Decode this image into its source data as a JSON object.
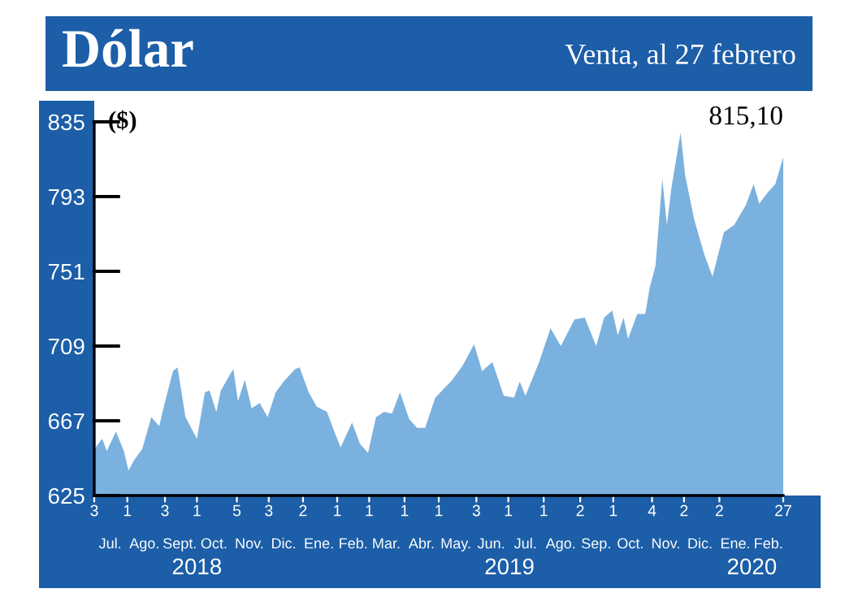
{
  "chart_data": {
    "type": "area",
    "title": "Dólar",
    "subtitle": "Venta, al 27 febrero",
    "ylabel": "($)",
    "x": [
      "2018-07-03",
      "2018-07-10",
      "2018-07-14",
      "2018-07-22",
      "2018-07-29",
      "2018-08-02",
      "2018-08-07",
      "2018-08-14",
      "2018-08-22",
      "2018-08-29",
      "2018-09-02",
      "2018-09-10",
      "2018-09-14",
      "2018-09-21",
      "2018-10-01",
      "2018-10-08",
      "2018-10-12",
      "2018-10-18",
      "2018-10-22",
      "2018-10-30",
      "2018-11-02",
      "2018-11-06",
      "2018-11-12",
      "2018-11-18",
      "2018-11-25",
      "2018-12-02",
      "2018-12-09",
      "2018-12-16",
      "2018-12-26",
      "2018-12-30",
      "2019-01-07",
      "2019-01-14",
      "2019-01-23",
      "2019-01-30",
      "2019-02-04",
      "2019-02-14",
      "2019-02-21",
      "2019-02-28",
      "2019-03-07",
      "2019-03-14",
      "2019-03-21",
      "2019-03-28",
      "2019-04-05",
      "2019-04-12",
      "2019-04-19",
      "2019-04-28",
      "2019-05-13",
      "2019-05-22",
      "2019-06-01",
      "2019-06-08",
      "2019-06-17",
      "2019-06-27",
      "2019-07-06",
      "2019-07-11",
      "2019-07-16",
      "2019-07-28",
      "2019-08-07",
      "2019-08-16",
      "2019-08-28",
      "2019-09-06",
      "2019-09-16",
      "2019-09-23",
      "2019-09-30",
      "2019-10-05",
      "2019-10-10",
      "2019-10-14",
      "2019-10-22",
      "2019-10-29",
      "2019-11-02",
      "2019-11-07",
      "2019-11-13",
      "2019-11-17",
      "2019-11-21",
      "2019-11-29",
      "2019-12-03",
      "2019-12-11",
      "2019-12-20",
      "2019-12-27",
      "2020-01-06",
      "2020-01-15",
      "2020-01-25",
      "2020-02-01",
      "2020-02-06",
      "2020-02-13",
      "2020-02-20",
      "2020-02-27"
    ],
    "series": [
      {
        "color": "#7bb1de",
        "values": [
          651,
          657,
          650,
          661,
          650,
          639,
          645,
          651,
          669,
          664,
          675,
          695,
          697,
          669,
          657,
          683,
          684,
          672,
          684,
          693,
          696,
          678,
          690,
          674,
          677,
          669,
          683,
          689,
          696,
          697,
          683,
          675,
          672,
          660,
          652,
          666,
          654,
          649,
          669,
          672,
          671,
          683,
          668,
          663,
          663,
          680,
          690,
          698,
          710,
          695,
          700,
          681,
          680,
          689,
          681,
          700,
          719,
          709,
          724,
          725,
          709,
          725,
          729,
          715,
          725,
          713,
          727,
          727,
          742,
          754,
          803,
          777,
          798,
          829,
          805,
          780,
          760,
          748,
          773,
          777,
          788,
          800,
          789,
          795,
          800,
          815.1
        ]
      }
    ],
    "annotations": [
      {
        "text": "815,10",
        "x": "2020-02-27",
        "y": 815.1
      },
      "2018",
      "2019",
      "2020"
    ],
    "ylim": [
      625,
      835
    ],
    "yticks": [
      625,
      667,
      709,
      751,
      793,
      835
    ],
    "xlim": [
      "2018-07-03",
      "2020-02-27"
    ],
    "xticks": [
      {
        "value": "2018-07-03",
        "label": "3"
      },
      {
        "value": "2018-08-01",
        "label": "1"
      },
      {
        "value": "2018-09-03",
        "label": "3"
      },
      {
        "value": "2018-10-01",
        "label": "1"
      },
      {
        "value": "2018-11-05",
        "label": "5"
      },
      {
        "value": "2018-12-03",
        "label": "3"
      },
      {
        "value": "2019-01-02",
        "label": "2"
      },
      {
        "value": "2019-02-01",
        "label": "1"
      },
      {
        "value": "2019-03-01",
        "label": "1"
      },
      {
        "value": "2019-04-01",
        "label": "1"
      },
      {
        "value": "2019-05-01",
        "label": "1"
      },
      {
        "value": "2019-06-03",
        "label": "3"
      },
      {
        "value": "2019-07-01",
        "label": "1"
      },
      {
        "value": "2019-08-01",
        "label": "1"
      },
      {
        "value": "2019-09-02",
        "label": "2"
      },
      {
        "value": "2019-10-01",
        "label": "1"
      },
      {
        "value": "2019-11-04",
        "label": "4"
      },
      {
        "value": "2019-12-02",
        "label": "2"
      },
      {
        "value": "2020-01-02",
        "label": "2"
      },
      {
        "value": "2020-02-27",
        "label": "27"
      }
    ],
    "x2lim": [
      "2018-07-03",
      "2020-02-27"
    ],
    "x2ticks": [
      {
        "value": "2018-07-17",
        "label": "Jul."
      },
      {
        "value": "2018-08-16",
        "label": "Ago."
      },
      {
        "value": "2018-09-16",
        "label": "Sept."
      },
      {
        "value": "2018-10-16",
        "label": "Oct."
      },
      {
        "value": "2018-11-16",
        "label": "Nov."
      },
      {
        "value": "2018-12-16",
        "label": "Dic."
      },
      {
        "value": "2019-01-16",
        "label": "Ene."
      },
      {
        "value": "2019-02-15",
        "label": "Feb."
      },
      {
        "value": "2019-03-16",
        "label": "Mar."
      },
      {
        "value": "2019-04-16",
        "label": "Abr."
      },
      {
        "value": "2019-05-16",
        "label": "May."
      },
      {
        "value": "2019-06-16",
        "label": "Jun."
      },
      {
        "value": "2019-07-16",
        "label": "Jul."
      },
      {
        "value": "2019-08-16",
        "label": "Ago."
      },
      {
        "value": "2019-09-16",
        "label": "Sep."
      },
      {
        "value": "2019-10-16",
        "label": "Oct."
      },
      {
        "value": "2019-11-16",
        "label": "Nov."
      },
      {
        "value": "2019-12-16",
        "label": "Dic."
      },
      {
        "value": "2020-01-16",
        "label": "Ene."
      },
      {
        "value": "2020-02-14",
        "label": "Feb."
      }
    ],
    "grid": false,
    "legend": false
  }
}
